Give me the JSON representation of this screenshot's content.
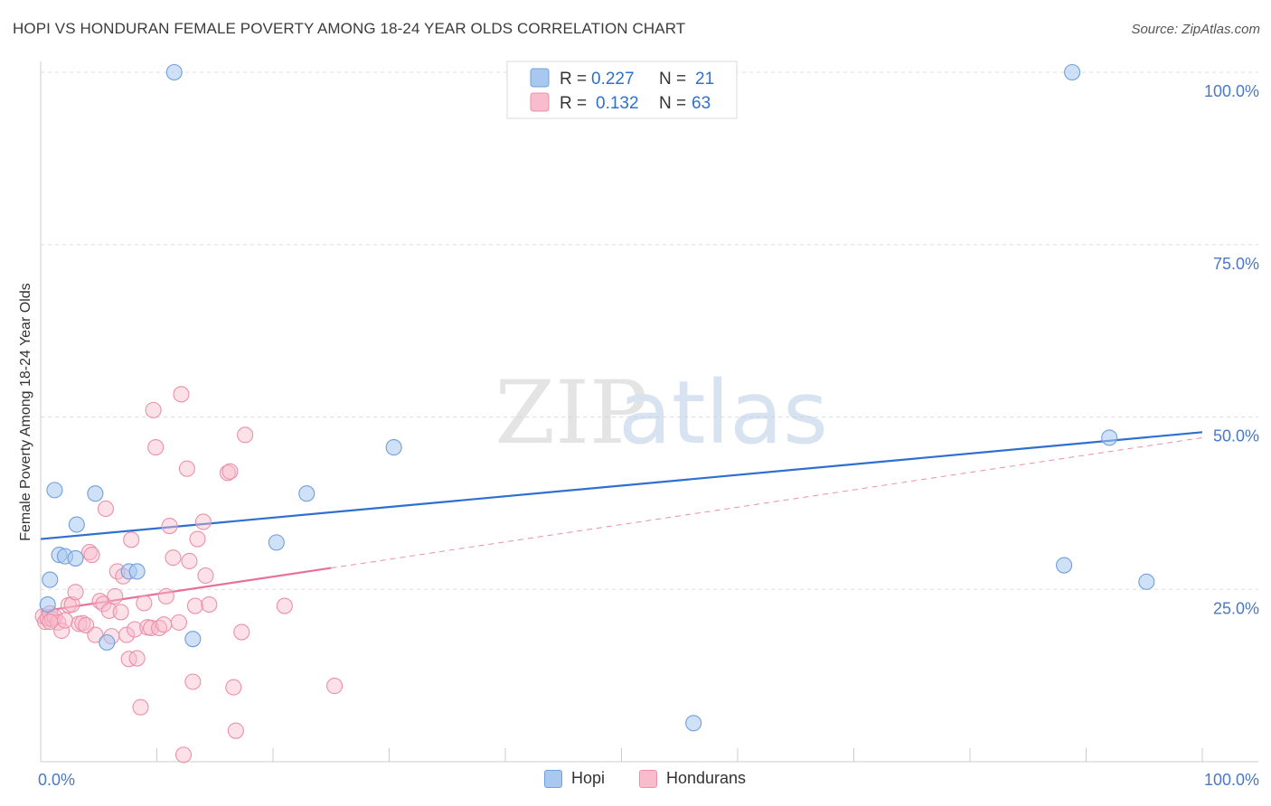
{
  "header": {
    "title": "HOPI VS HONDURAN FEMALE POVERTY AMONG 18-24 YEAR OLDS CORRELATION CHART",
    "source": "Source: ZipAtlas.com"
  },
  "watermark": {
    "zip": "ZIP",
    "atlas": "atlas"
  },
  "colors": {
    "hopi_fill": "#a8c8f0",
    "hopi_stroke": "#6f9fdc",
    "hopi_line": "#2f6fd0",
    "hond_fill": "#f8bccd",
    "hond_stroke": "#ec8fab",
    "hond_line": "#e8709a",
    "tick_label": "#4a78c7",
    "grid": "#dddddd"
  },
  "legend": {
    "rows": [
      {
        "r_label": "R =",
        "r_value": "0.227",
        "n_label": "N =",
        "n_value": "21"
      },
      {
        "r_label": "R =",
        "r_value": "0.132",
        "n_label": "N =",
        "n_value": "63"
      }
    ]
  },
  "bottom_legend": {
    "hopi": "Hopi",
    "hondurans": "Hondurans"
  },
  "chart_data": {
    "type": "scatter",
    "title": "HOPI VS HONDURAN FEMALE POVERTY AMONG 18-24 YEAR OLDS CORRELATION CHART",
    "xlabel": "",
    "ylabel": "Female Poverty Among 18-24 Year Olds",
    "xlim": [
      0,
      100
    ],
    "ylim": [
      0,
      100
    ],
    "x_tick_labels": [
      "0.0%",
      "100.0%"
    ],
    "y_ticks": [
      25,
      50,
      75,
      100
    ],
    "y_tick_labels": [
      "25.0%",
      "50.0%",
      "75.0%",
      "100.0%"
    ],
    "grid": true,
    "series": [
      {
        "name": "Hopi",
        "R": 0.227,
        "N": 21,
        "trend": {
          "x": [
            0,
            100
          ],
          "y": [
            32.3,
            47.8
          ],
          "style": "solid"
        },
        "points": [
          [
            0.6,
            22.8
          ],
          [
            0.8,
            26.4
          ],
          [
            1.2,
            39.4
          ],
          [
            1.6,
            30.0
          ],
          [
            2.1,
            29.8
          ],
          [
            3.1,
            34.4
          ],
          [
            3.0,
            29.5
          ],
          [
            4.7,
            38.9
          ],
          [
            5.7,
            17.3
          ],
          [
            7.6,
            27.6
          ],
          [
            8.3,
            27.6
          ],
          [
            11.5,
            100
          ],
          [
            13.1,
            17.8
          ],
          [
            20.3,
            31.8
          ],
          [
            22.9,
            38.9
          ],
          [
            30.4,
            45.6
          ],
          [
            56.2,
            5.6
          ],
          [
            88.1,
            28.5
          ],
          [
            88.8,
            100
          ],
          [
            92.0,
            47.0
          ],
          [
            95.2,
            26.1
          ]
        ]
      },
      {
        "name": "Hondurans",
        "R": 0.132,
        "N": 63,
        "trend": {
          "x": [
            0,
            25
          ],
          "y": [
            21.8,
            28.1
          ],
          "style": "solid",
          "extended": {
            "x": [
              25,
              100
            ],
            "y": [
              28.1,
              47.0
            ],
            "style": "dashed"
          }
        },
        "points": [
          [
            0.2,
            21.1
          ],
          [
            0.4,
            20.3
          ],
          [
            0.6,
            20.8
          ],
          [
            0.8,
            21.5
          ],
          [
            1.0,
            20.7
          ],
          [
            1.2,
            21.0
          ],
          [
            1.5,
            20.2
          ],
          [
            1.8,
            19.0
          ],
          [
            2.1,
            20.5
          ],
          [
            2.4,
            22.7
          ],
          [
            2.7,
            22.8
          ],
          [
            3.0,
            24.6
          ],
          [
            3.3,
            20.0
          ],
          [
            3.6,
            20.1
          ],
          [
            3.9,
            19.8
          ],
          [
            4.2,
            30.4
          ],
          [
            4.4,
            30.0
          ],
          [
            4.7,
            18.4
          ],
          [
            5.1,
            23.3
          ],
          [
            5.4,
            22.9
          ],
          [
            5.6,
            36.7
          ],
          [
            5.9,
            21.9
          ],
          [
            6.1,
            18.2
          ],
          [
            6.4,
            24.0
          ],
          [
            6.6,
            27.6
          ],
          [
            6.9,
            21.7
          ],
          [
            7.1,
            26.9
          ],
          [
            7.4,
            18.4
          ],
          [
            7.6,
            14.9
          ],
          [
            7.8,
            32.2
          ],
          [
            8.1,
            19.2
          ],
          [
            8.3,
            15.0
          ],
          [
            8.6,
            7.9
          ],
          [
            8.9,
            23.0
          ],
          [
            9.2,
            19.5
          ],
          [
            9.5,
            19.4
          ],
          [
            9.7,
            51.0
          ],
          [
            9.9,
            45.6
          ],
          [
            10.2,
            19.4
          ],
          [
            10.6,
            19.9
          ],
          [
            10.8,
            24.0
          ],
          [
            11.1,
            34.2
          ],
          [
            11.4,
            29.6
          ],
          [
            11.9,
            20.2
          ],
          [
            12.1,
            53.3
          ],
          [
            12.3,
            1.0
          ],
          [
            12.6,
            42.5
          ],
          [
            12.8,
            29.1
          ],
          [
            13.1,
            11.6
          ],
          [
            13.3,
            22.6
          ],
          [
            13.5,
            32.3
          ],
          [
            14.0,
            34.8
          ],
          [
            14.2,
            27.0
          ],
          [
            14.5,
            22.8
          ],
          [
            16.1,
            41.9
          ],
          [
            16.3,
            42.1
          ],
          [
            16.6,
            10.8
          ],
          [
            16.8,
            4.5
          ],
          [
            17.3,
            18.8
          ],
          [
            17.6,
            47.4
          ],
          [
            21.0,
            22.6
          ],
          [
            25.3,
            11.0
          ],
          [
            0.8,
            20.3
          ]
        ]
      }
    ]
  }
}
